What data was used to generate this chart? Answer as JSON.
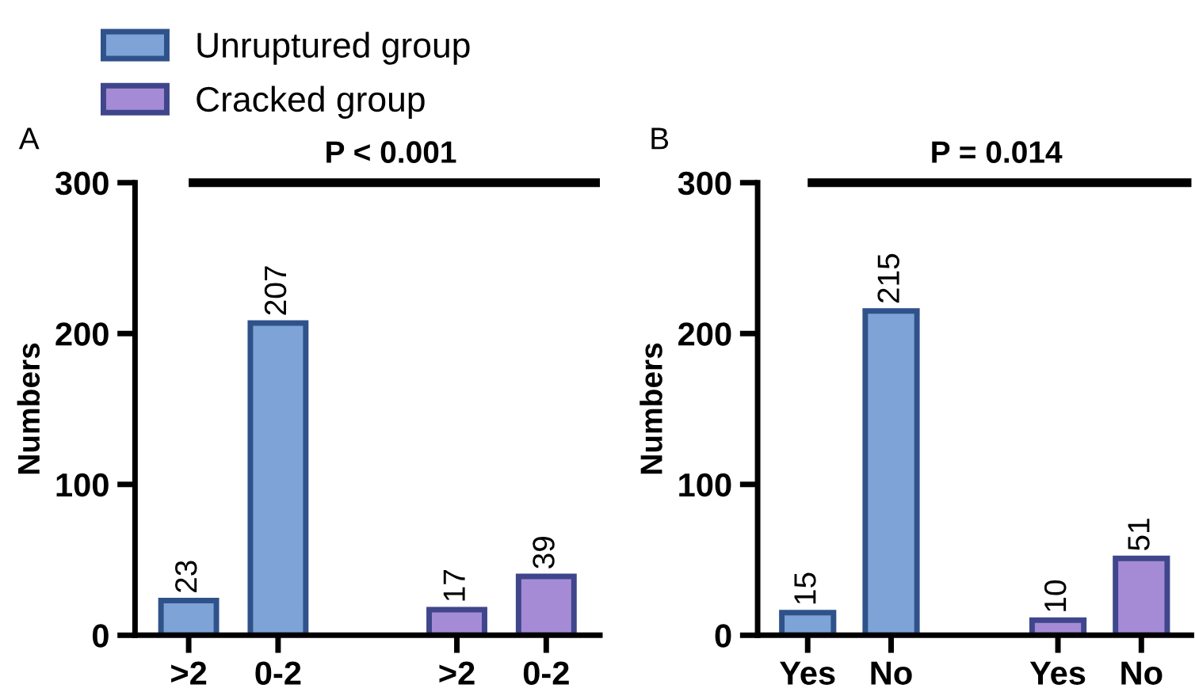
{
  "chart_data": [
    {
      "type": "bar",
      "title": "A",
      "ylabel": "Numbers",
      "categories": [
        ">2",
        "0-2",
        null,
        ">2",
        "0-2"
      ],
      "series": [
        {
          "name": "Unruptured group",
          "color": "#7ea3d6",
          "values": [
            23,
            207,
            null,
            null,
            null
          ]
        },
        {
          "name": "Cracked group",
          "color": "#a58bd6",
          "values": [
            null,
            null,
            null,
            17,
            39
          ]
        }
      ],
      "ylim": [
        0,
        300
      ],
      "yticks": [
        0,
        100,
        200,
        300
      ],
      "data_labels": true,
      "legend": "top left",
      "annotations": [
        "P < 0.001"
      ]
    },
    {
      "type": "bar",
      "title": "B",
      "ylabel": "Numbers",
      "categories": [
        "Yes",
        "No",
        null,
        "Yes",
        "No"
      ],
      "series": [
        {
          "color": "#7ea3d6",
          "values": [
            15,
            215,
            null,
            null,
            null
          ]
        },
        {
          "color": "#a58bd6",
          "values": [
            null,
            null,
            null,
            10,
            51
          ]
        }
      ],
      "ylim": [
        0,
        300
      ],
      "yticks": [
        0,
        100,
        200,
        300
      ],
      "data_labels": true,
      "annotations": [
        "P = 0.014"
      ]
    }
  ]
}
